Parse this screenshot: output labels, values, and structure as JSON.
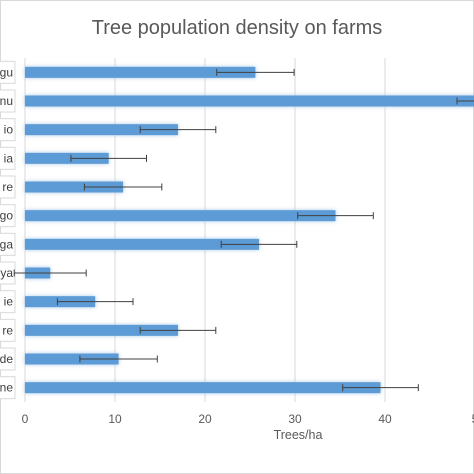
{
  "chart_data": {
    "type": "bar",
    "orientation": "horizontal",
    "title": "Tree population density on farms",
    "xlabel": "Trees/ha",
    "ylabel": "",
    "xlim": [
      0,
      50
    ],
    "x_ticks": [
      "0",
      "10",
      "20",
      "30",
      "40",
      "5"
    ],
    "grid": true,
    "categories": [
      "gu",
      "nu",
      "io",
      "ia",
      "re",
      "go",
      "ga",
      "ya",
      "ie",
      "re",
      "de",
      "ne"
    ],
    "series": [
      {
        "values": [
          25.6,
          52.0,
          17.0,
          9.3,
          10.9,
          34.5,
          26.0,
          2.8,
          7.8,
          17.0,
          10.4,
          39.5
        ],
        "errors": [
          4.3,
          4.0,
          4.2,
          4.2,
          4.3,
          4.2,
          4.2,
          4.0,
          4.2,
          4.2,
          4.3,
          4.2
        ],
        "color": "#5b9bd5"
      }
    ]
  }
}
